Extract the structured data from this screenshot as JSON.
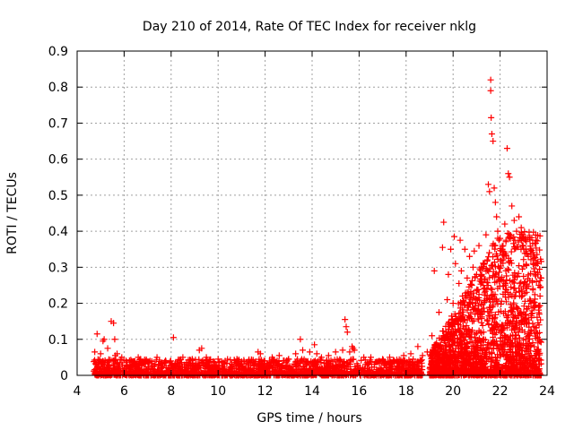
{
  "chart_data": {
    "type": "scatter",
    "title": "Day 210 of 2014, Rate Of TEC Index for receiver nklg",
    "xlabel": "GPS time / hours",
    "ylabel": "ROTI / TECUs",
    "xlim": [
      4,
      24
    ],
    "ylim": [
      0,
      0.9
    ],
    "xticks": [
      4,
      6,
      8,
      10,
      12,
      14,
      16,
      18,
      20,
      22,
      24
    ],
    "yticks": [
      0,
      0.1,
      0.2,
      0.3,
      0.4,
      0.5,
      0.6,
      0.7,
      0.8,
      0.9
    ],
    "grid": true,
    "marker": "+",
    "color": "#ff0000",
    "series": [
      {
        "name": "ROTI",
        "x": [
          4.75,
          4.85,
          5.0,
          5.1,
          5.15,
          5.3,
          5.45,
          5.55,
          5.6,
          5.62,
          5.7,
          5.9,
          6.6,
          6.7,
          7.1,
          7.4,
          8.1,
          8.3,
          8.5,
          8.9,
          9.2,
          9.3,
          9.5,
          10.0,
          10.3,
          10.8,
          11.3,
          11.7,
          11.8,
          12.3,
          12.6,
          13.0,
          13.3,
          13.5,
          13.6,
          13.9,
          14.1,
          14.2,
          14.4,
          14.7,
          15.0,
          15.3,
          15.4,
          15.45,
          15.5,
          15.6,
          15.7,
          15.75,
          15.8,
          16.2,
          16.5,
          17.0,
          17.3,
          17.5,
          17.9,
          18.2,
          18.3,
          18.5,
          18.7,
          18.9,
          19.1,
          19.2,
          19.4,
          19.55,
          19.6,
          19.75,
          19.8,
          19.9,
          20.0,
          20.05,
          20.1,
          20.2,
          20.25,
          20.3,
          20.35,
          20.4,
          20.5,
          20.55,
          20.6,
          20.7,
          20.8,
          20.85,
          20.9,
          21.0,
          21.1,
          21.2,
          21.3,
          21.4,
          21.5,
          21.55,
          21.6,
          21.6,
          21.62,
          21.65,
          21.7,
          21.75,
          21.8,
          21.85,
          21.9,
          22.0,
          22.1,
          22.2,
          22.25,
          22.3,
          22.35,
          22.4,
          22.5,
          22.6,
          22.7,
          22.8,
          22.9,
          23.0,
          23.1,
          23.2,
          23.3,
          23.4,
          23.5,
          23.55,
          23.6,
          23.65,
          23.7,
          23.75
        ],
        "values": [
          0.065,
          0.115,
          0.06,
          0.095,
          0.1,
          0.075,
          0.15,
          0.145,
          0.1,
          0.055,
          0.06,
          0.05,
          0.05,
          0.045,
          0.04,
          0.05,
          0.105,
          0.04,
          0.05,
          0.045,
          0.07,
          0.075,
          0.05,
          0.045,
          0.04,
          0.045,
          0.04,
          0.065,
          0.06,
          0.05,
          0.055,
          0.045,
          0.06,
          0.1,
          0.07,
          0.065,
          0.085,
          0.06,
          0.05,
          0.055,
          0.065,
          0.07,
          0.155,
          0.135,
          0.12,
          0.065,
          0.08,
          0.075,
          0.07,
          0.05,
          0.05,
          0.045,
          0.05,
          0.04,
          0.055,
          0.06,
          0.045,
          0.08,
          0.055,
          0.065,
          0.11,
          0.29,
          0.175,
          0.355,
          0.425,
          0.21,
          0.28,
          0.35,
          0.2,
          0.385,
          0.31,
          0.15,
          0.255,
          0.375,
          0.29,
          0.22,
          0.35,
          0.215,
          0.27,
          0.33,
          0.25,
          0.3,
          0.345,
          0.28,
          0.36,
          0.3,
          0.24,
          0.39,
          0.53,
          0.51,
          0.82,
          0.79,
          0.715,
          0.67,
          0.65,
          0.52,
          0.48,
          0.44,
          0.4,
          0.38,
          0.35,
          0.42,
          0.375,
          0.63,
          0.56,
          0.55,
          0.47,
          0.43,
          0.4,
          0.44,
          0.41,
          0.38,
          0.35,
          0.33,
          0.345,
          0.31,
          0.32,
          0.26,
          0.31,
          0.25,
          0.22,
          0.27
        ]
      }
    ]
  }
}
